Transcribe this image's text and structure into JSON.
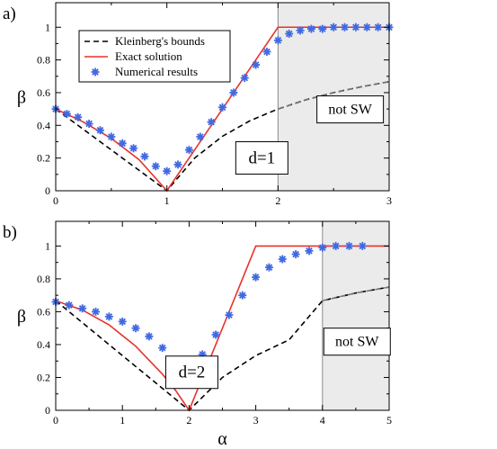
{
  "chart_data": [
    {
      "type": "line",
      "panel_label": "a)",
      "xlim": [
        0,
        3
      ],
      "ylim": [
        0,
        1.15
      ],
      "xticks": [
        "0",
        "1",
        "2",
        "3"
      ],
      "yticks": [
        "0",
        "0.2",
        "0.4",
        "0.6",
        "0.8",
        "1"
      ],
      "ylabel": "β",
      "xlabel": "",
      "not_sw_region": [
        2,
        3
      ],
      "not_sw_label": "not SW",
      "d_label": "d=1",
      "legend": {
        "position": "top-left",
        "entries": [
          "Kleinberg's bounds",
          "Exact solution",
          "Numerical results"
        ]
      },
      "series": [
        {
          "name": "Kleinberg's bounds",
          "style": "dashed",
          "color": "#000000",
          "x": [
            0,
            0.25,
            0.5,
            0.75,
            1.0,
            1.25,
            1.5,
            1.75,
            2.0,
            2.25,
            2.5,
            2.75,
            3.0
          ],
          "y": [
            0.5,
            0.375,
            0.25,
            0.125,
            0.0,
            0.2,
            0.333,
            0.429,
            0.5,
            0.556,
            0.6,
            0.636,
            0.667
          ]
        },
        {
          "name": "Exact solution",
          "style": "solid",
          "color": "#e8322b",
          "x": [
            0,
            0.25,
            0.5,
            0.75,
            1.0,
            1.25,
            1.5,
            1.75,
            2.0,
            3.0
          ],
          "y": [
            0.5,
            0.42,
            0.32,
            0.19,
            0.0,
            0.25,
            0.5,
            0.75,
            1.0,
            1.0
          ]
        },
        {
          "name": "Numerical results",
          "style": "star",
          "color": "#4169e1",
          "x": [
            0,
            0.1,
            0.2,
            0.3,
            0.4,
            0.5,
            0.6,
            0.7,
            0.8,
            0.9,
            1.0,
            1.1,
            1.2,
            1.3,
            1.4,
            1.5,
            1.6,
            1.7,
            1.8,
            1.9,
            2.0,
            2.1,
            2.2,
            2.3,
            2.4,
            2.5,
            2.6,
            2.7,
            2.8,
            2.9,
            3.0
          ],
          "y": [
            0.5,
            0.47,
            0.45,
            0.41,
            0.37,
            0.33,
            0.29,
            0.26,
            0.21,
            0.15,
            0.12,
            0.16,
            0.25,
            0.33,
            0.42,
            0.51,
            0.6,
            0.69,
            0.77,
            0.85,
            0.92,
            0.96,
            0.98,
            0.99,
            0.99,
            1.0,
            1.0,
            1.0,
            1.0,
            1.0,
            1.0
          ]
        }
      ]
    },
    {
      "type": "line",
      "panel_label": "b)",
      "xlim": [
        0,
        5
      ],
      "ylim": [
        0,
        1.15
      ],
      "xticks": [
        "0",
        "1",
        "2",
        "3",
        "4",
        "5"
      ],
      "yticks": [
        "0",
        "0.2",
        "0.4",
        "0.6",
        "0.8",
        "1"
      ],
      "ylabel": "β",
      "xlabel": "α",
      "not_sw_region": [
        4,
        5
      ],
      "not_sw_label": "not SW",
      "d_label": "d=2",
      "series": [
        {
          "name": "Kleinberg's bounds",
          "style": "dashed",
          "color": "#000000",
          "x": [
            0,
            0.5,
            1.0,
            1.5,
            2.0,
            2.5,
            3.0,
            3.5,
            4.0,
            4.5,
            5.0
          ],
          "y": [
            0.667,
            0.5,
            0.333,
            0.167,
            0.0,
            0.2,
            0.333,
            0.429,
            0.667,
            0.714,
            0.75
          ]
        },
        {
          "name": "Exact solution",
          "style": "solid",
          "color": "#e8322b",
          "x": [
            0,
            0.4,
            0.8,
            1.2,
            1.6,
            1.8,
            2.0,
            3.0,
            5.0
          ],
          "y": [
            0.667,
            0.61,
            0.52,
            0.39,
            0.22,
            0.12,
            0.0,
            1.0,
            1.0
          ]
        },
        {
          "name": "Numerical results",
          "style": "star",
          "color": "#4169e1",
          "x": [
            0,
            0.2,
            0.4,
            0.6,
            0.8,
            1.0,
            1.2,
            1.4,
            1.6,
            1.8,
            2.0,
            2.2,
            2.4,
            2.6,
            2.8,
            3.0,
            3.2,
            3.4,
            3.6,
            3.8,
            4.0,
            4.2,
            4.4,
            4.6
          ],
          "y": [
            0.66,
            0.64,
            0.62,
            0.6,
            0.57,
            0.54,
            0.5,
            0.45,
            0.38,
            0.27,
            0.2,
            0.34,
            0.46,
            0.58,
            0.7,
            0.81,
            0.87,
            0.92,
            0.95,
            0.97,
            0.99,
            1.0,
            1.0,
            1.0
          ]
        }
      ]
    }
  ]
}
